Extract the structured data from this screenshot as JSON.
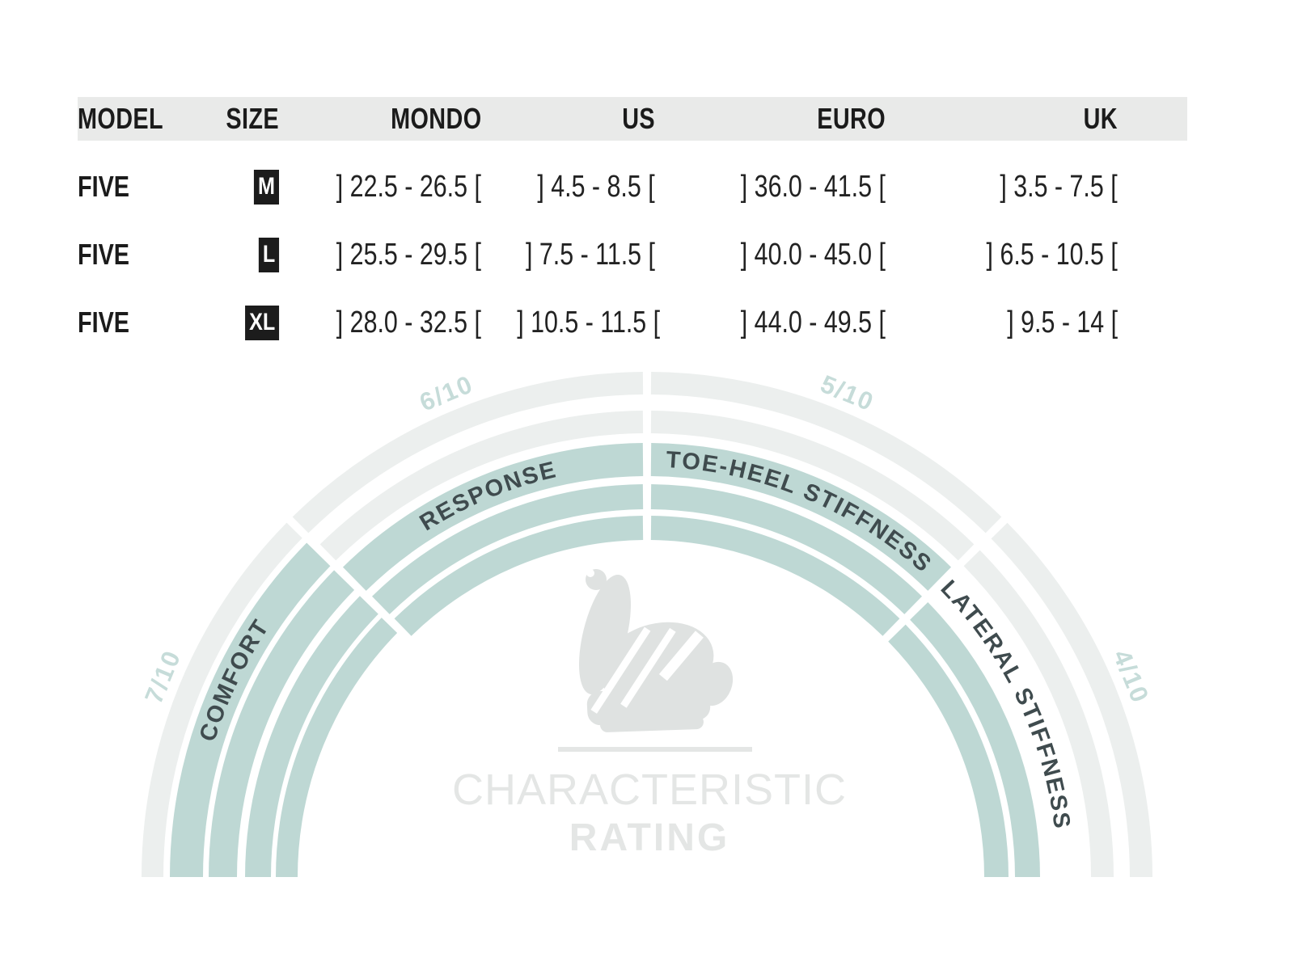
{
  "table": {
    "headers": [
      "MODEL",
      "SIZE",
      "MONDO",
      "US",
      "EURO",
      "UK"
    ],
    "rows": [
      {
        "model": "FIVE",
        "size": "M",
        "mondo": "] 22.5 - 26.5 [",
        "us": "] 4.5 - 8.5 [",
        "euro": "] 36.0 - 41.5 [",
        "uk": "] 3.5 - 7.5 ["
      },
      {
        "model": "FIVE",
        "size": "L",
        "mondo": "] 25.5 - 29.5 [",
        "us": "] 7.5 - 11.5 [",
        "euro": "] 40.0 - 45.0 [",
        "uk": "] 6.5 - 10.5 ["
      },
      {
        "model": "FIVE",
        "size": "XL",
        "mondo": "] 28.0 - 32.5 [",
        "us": "] 10.5 - 11.5 [",
        "euro": "] 44.0 - 49.5 [",
        "uk": "] 9.5 - 14 ["
      }
    ]
  },
  "chart_data": {
    "type": "semicircular-rating-gauge",
    "title": "CHARACTERISTIC",
    "subtitle": "RATING",
    "scale_max": 10,
    "segments": [
      {
        "label": "COMFORT",
        "rating": 7,
        "rating_label": "7/10"
      },
      {
        "label": "RESPONSE",
        "rating": 6,
        "rating_label": "6/10"
      },
      {
        "label": "TOE-HEEL STIFFNESS",
        "rating": 5,
        "rating_label": "5/10"
      },
      {
        "label": "LATERAL STIFFNESS",
        "rating": 4,
        "rating_label": "4/10"
      }
    ],
    "legend_position": "labels-on-arcs",
    "colors": {
      "filled": "#bed8d4",
      "unfilled": "#ecefee",
      "segment_label_text": "#3f4b4e",
      "rating_text": "#c6dcd9",
      "center_text": "#e4e6e5",
      "table_header_bg": "#e9eae9",
      "size_badge_bg": "#1c1c1c",
      "size_badge_text": "#ffffff"
    }
  }
}
